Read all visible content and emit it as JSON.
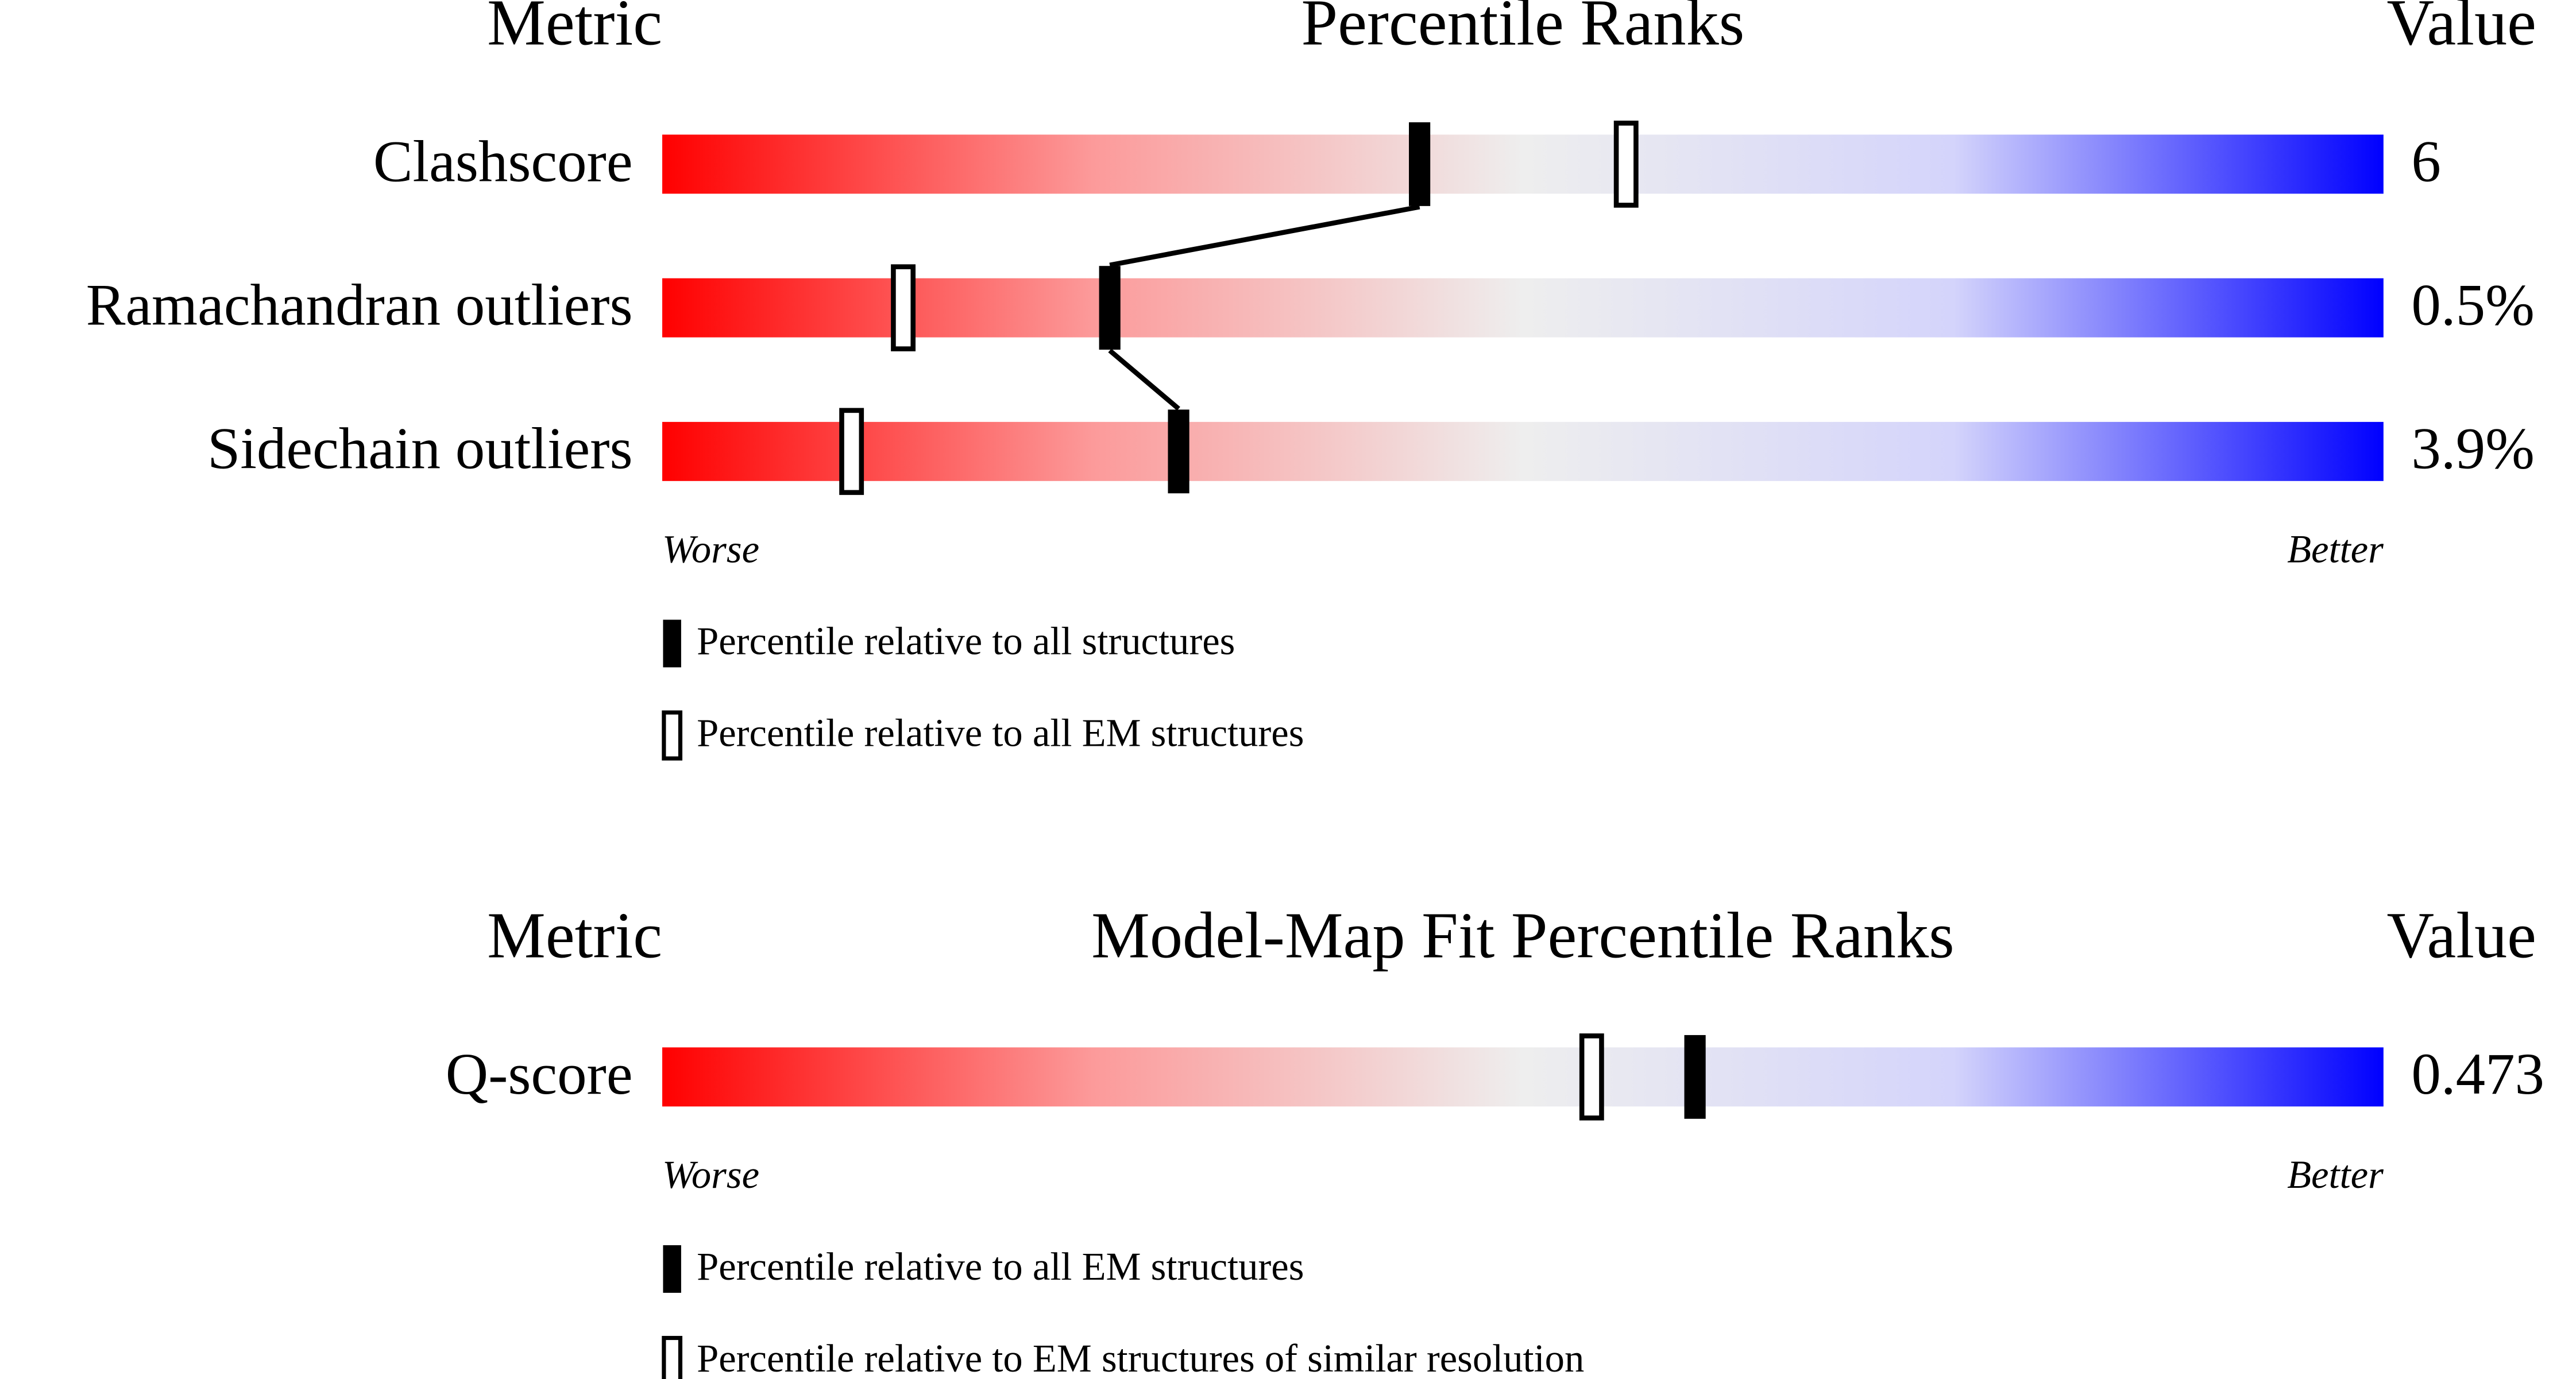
{
  "chart_data": [
    {
      "type": "percentile-slider",
      "headers": {
        "metric": "Metric",
        "title": "Percentile Ranks",
        "value": "Value"
      },
      "categories": [
        "Clashscore",
        "Ramachandran outliers",
        "Sidechain outliers"
      ],
      "metric_values": [
        "6",
        "0.5%",
        "3.9%"
      ],
      "xlim": [
        0,
        100
      ],
      "x_labels": {
        "low": "Worse",
        "high": "Better"
      },
      "series": [
        {
          "name": "Percentile relative to all structures",
          "color": "#000000",
          "filled": true,
          "values": [
            44,
            26,
            30
          ]
        },
        {
          "name": "Percentile relative to all EM structures",
          "color": "#000000",
          "filled": false,
          "values": [
            56,
            14,
            11
          ]
        }
      ]
    },
    {
      "type": "percentile-slider",
      "headers": {
        "metric": "Metric",
        "title": "Model-Map Fit Percentile Ranks",
        "value": "Value"
      },
      "categories": [
        "Q-score"
      ],
      "metric_values": [
        "0.473"
      ],
      "xlim": [
        0,
        100
      ],
      "x_labels": {
        "low": "Worse",
        "high": "Better"
      },
      "series": [
        {
          "name": "Percentile relative to all EM structures",
          "color": "#000000",
          "filled": true,
          "values": [
            60
          ]
        },
        {
          "name": "Percentile relative to EM structures of similar resolution",
          "color": "#000000",
          "filled": false,
          "values": [
            54
          ]
        }
      ]
    }
  ]
}
